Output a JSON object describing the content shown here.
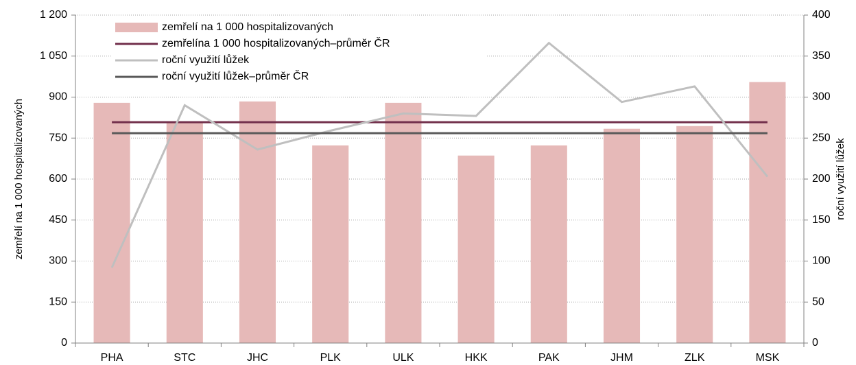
{
  "chart_data": {
    "type": "bar",
    "categories": [
      "PHA",
      "STC",
      "JHC",
      "PLK",
      "ULK",
      "HKK",
      "PAK",
      "JHM",
      "ZLK",
      "MSK"
    ],
    "series": [
      {
        "name": "zemřelí na 1 000 hospitalizovaných",
        "type": "bar",
        "color": "#e6b9b8",
        "values": [
          879,
          810,
          884,
          723,
          879,
          686,
          723,
          784,
          794,
          955
        ]
      },
      {
        "name": "zemřelína 1 000 hospitalizovaných–průměr ČR",
        "type": "line",
        "color": "#722f4b",
        "values": [
          808,
          808,
          808,
          808,
          808,
          808,
          808,
          808,
          808,
          808
        ]
      },
      {
        "name": "roční využití lůžek",
        "type": "line",
        "axis": "y2",
        "color": "#bfbfbf",
        "values": [
          92,
          290,
          236,
          259,
          280,
          277,
          366,
          294,
          313,
          203
        ]
      },
      {
        "name": "roční využití lůžek–průměr ČR",
        "type": "line",
        "axis": "y2",
        "color": "#595959",
        "values": [
          256,
          256,
          256,
          256,
          256,
          256,
          256,
          256,
          256,
          256
        ]
      }
    ],
    "ylabel": "zemřelí na 1 000 hospitalizovaných",
    "y2label": "roční využití lůžek",
    "ylim": [
      0,
      1200
    ],
    "yticks": [
      0,
      150,
      300,
      450,
      600,
      750,
      900,
      {
        "value": 1050,
        "label": "1 050"
      },
      {
        "value": 1200,
        "label": "1 200"
      }
    ],
    "y2lim": [
      0,
      400
    ],
    "y2ticks": [
      0,
      50,
      100,
      150,
      200,
      250,
      300,
      350,
      400
    ],
    "grid": true,
    "legend": "top-left"
  }
}
